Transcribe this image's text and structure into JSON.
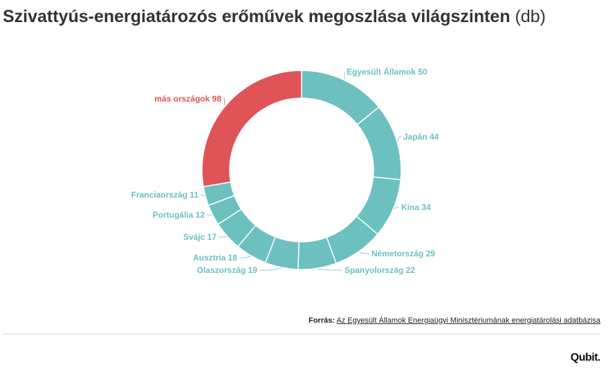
{
  "title": {
    "main": "Szivattyús-energiatározós erőművek megoszlása világszinten",
    "unit": "(db)"
  },
  "chart_data": {
    "type": "pie",
    "style": "donut",
    "categories": [
      "Egyesült Államok",
      "Japán",
      "Kína",
      "Németország",
      "Spanyolország",
      "Olaszország",
      "Ausztria",
      "Svájc",
      "Portugália",
      "Franciaország",
      "más országok"
    ],
    "values": [
      50,
      44,
      34,
      29,
      22,
      19,
      18,
      17,
      12,
      11,
      98
    ],
    "colors": [
      "#6cc0c0",
      "#6cc0c0",
      "#6cc0c0",
      "#6cc0c0",
      "#6cc0c0",
      "#6cc0c0",
      "#6cc0c0",
      "#6cc0c0",
      "#6cc0c0",
      "#6cc0c0",
      "#df5457"
    ],
    "labels": [
      "Egyesült Államok 50",
      "Japán 44",
      "Kína 34",
      "Németország 29",
      "Spanyolország 22",
      "Olaszország 19",
      "Ausztria 18",
      "Svájc 17",
      "Portugália 12",
      "Franciaország 11",
      "más országok 98"
    ]
  },
  "source": {
    "label": "Forrás:",
    "link_text": "Az Egyesült Államok Energiaügyi Minisztériumának energiatárolási adatbázisa"
  },
  "logo": "Qubit."
}
